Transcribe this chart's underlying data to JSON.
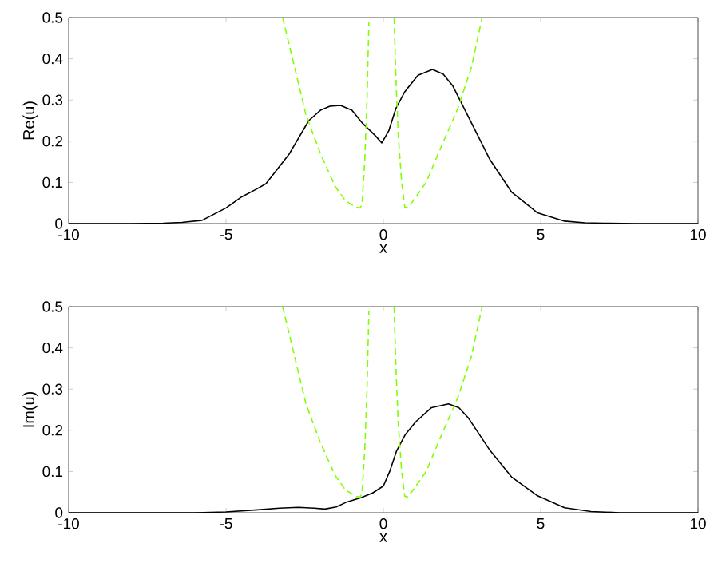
{
  "chart_data": [
    {
      "type": "line",
      "xlabel": "x",
      "ylabel": "Re(u)",
      "xlim": [
        -10,
        10
      ],
      "ylim": [
        0,
        0.5
      ],
      "xticks": [
        -10,
        -5,
        0,
        5,
        10
      ],
      "yticks": [
        0,
        0.1,
        0.2,
        0.3,
        0.4,
        0.5
      ],
      "series": [
        {
          "color": "#000000",
          "line_style": "solid",
          "x": [
            -10,
            -8,
            -7,
            -6.4,
            -5.76,
            -5,
            -4.5,
            -4,
            -3.73,
            -3,
            -2.37,
            -2,
            -1.7,
            -1.36,
            -1,
            -0.68,
            -0.25,
            -0.05,
            0.17,
            0.4,
            0.68,
            1.1,
            1.56,
            1.9,
            2.2,
            2.71,
            3.39,
            4.07,
            4.9,
            5.76,
            6.4,
            7,
            8,
            10
          ],
          "values": [
            0,
            0,
            0.001,
            0.003,
            0.008,
            0.038,
            0.065,
            0.085,
            0.097,
            0.168,
            0.25,
            0.275,
            0.285,
            0.287,
            0.275,
            0.245,
            0.213,
            0.196,
            0.225,
            0.28,
            0.32,
            0.36,
            0.374,
            0.363,
            0.335,
            0.258,
            0.155,
            0.077,
            0.026,
            0.006,
            0.002,
            0.001,
            0,
            0
          ]
        },
        {
          "color": "#80ff00",
          "line_style": "dashed",
          "x": [
            -3.2,
            -2.46,
            -2,
            -1.53,
            -1.2,
            -0.85,
            -0.75,
            -0.68,
            -0.59,
            -0.52,
            -0.46
          ],
          "values": [
            0.5,
            0.264,
            0.17,
            0.09,
            0.055,
            0.039,
            0.038,
            0.045,
            0.155,
            0.3,
            0.49
          ]
        },
        {
          "color": "#80ff00",
          "line_style": "dashed",
          "x": [
            0.34,
            0.4,
            0.47,
            0.58,
            0.68,
            0.78,
            0.85,
            1.36,
            1.8,
            2.37,
            2.8,
            3.14
          ],
          "values": [
            0.5,
            0.35,
            0.22,
            0.1,
            0.04,
            0.038,
            0.045,
            0.1,
            0.18,
            0.28,
            0.38,
            0.5
          ]
        }
      ]
    },
    {
      "type": "line",
      "xlabel": "x",
      "ylabel": "Im(u)",
      "xlim": [
        -10,
        10
      ],
      "ylim": [
        0,
        0.5
      ],
      "xticks": [
        -10,
        -5,
        0,
        5,
        10
      ],
      "yticks": [
        0,
        0.1,
        0.2,
        0.3,
        0.4,
        0.5
      ],
      "series": [
        {
          "color": "#000000",
          "line_style": "solid",
          "x": [
            -10,
            -6,
            -5,
            -4,
            -3.3,
            -2.7,
            -2.2,
            -1.86,
            -1.5,
            -1.19,
            -0.7,
            -0.34,
            0,
            0.2,
            0.42,
            0.7,
            1.02,
            1.53,
            2.07,
            2.4,
            2.71,
            3.39,
            4.07,
            4.9,
            5.76,
            6.6,
            7.5,
            10
          ],
          "values": [
            0,
            0,
            0.002,
            0.007,
            0.011,
            0.013,
            0.011,
            0.009,
            0.014,
            0.025,
            0.037,
            0.048,
            0.065,
            0.1,
            0.15,
            0.19,
            0.22,
            0.255,
            0.264,
            0.255,
            0.229,
            0.151,
            0.087,
            0.041,
            0.012,
            0.003,
            0,
            0
          ]
        },
        {
          "color": "#80ff00",
          "line_style": "dashed",
          "x": [
            -3.2,
            -2.46,
            -2,
            -1.53,
            -1.2,
            -0.85,
            -0.75,
            -0.68,
            -0.59,
            -0.52,
            -0.46
          ],
          "values": [
            0.5,
            0.264,
            0.17,
            0.09,
            0.055,
            0.039,
            0.038,
            0.045,
            0.155,
            0.3,
            0.49
          ]
        },
        {
          "color": "#80ff00",
          "line_style": "dashed",
          "x": [
            0.34,
            0.4,
            0.47,
            0.58,
            0.68,
            0.78,
            0.85,
            1.36,
            1.8,
            2.37,
            2.8,
            3.14
          ],
          "values": [
            0.5,
            0.35,
            0.22,
            0.1,
            0.04,
            0.038,
            0.045,
            0.1,
            0.18,
            0.28,
            0.38,
            0.5
          ]
        }
      ]
    }
  ]
}
